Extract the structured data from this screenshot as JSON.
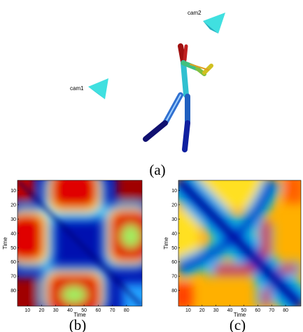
{
  "panel_a": {
    "cam1": "cam1",
    "cam2": "cam2",
    "caption": "(a)"
  },
  "panel_b": {
    "xticks": [
      10,
      20,
      30,
      40,
      50,
      60,
      70,
      80
    ],
    "yticks": [
      10,
      20,
      30,
      40,
      50,
      60,
      70,
      80
    ],
    "xlabel": "Time",
    "ylabel": "Time",
    "caption": "(b)"
  },
  "panel_c": {
    "xticks": [
      10,
      20,
      30,
      40,
      50,
      60,
      70,
      80
    ],
    "yticks": [
      10,
      20,
      30,
      40,
      50,
      60,
      70,
      80
    ],
    "xlabel": "Time",
    "ylabel": "Time",
    "caption": "(c)"
  }
}
